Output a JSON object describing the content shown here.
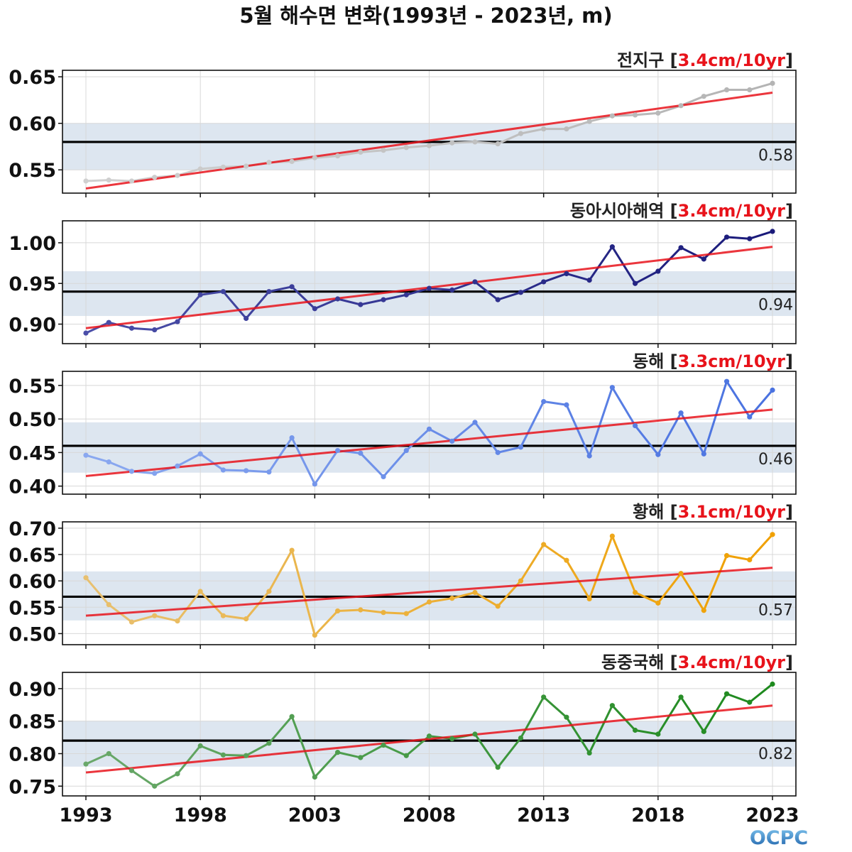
{
  "chart_data": {
    "type": "line",
    "title": "5월 해수면 변화(1993년 - 2023년, m)",
    "x": [
      1993,
      1994,
      1995,
      1996,
      1997,
      1998,
      1999,
      2000,
      2001,
      2002,
      2003,
      2004,
      2005,
      2006,
      2007,
      2008,
      2009,
      2010,
      2011,
      2012,
      2013,
      2014,
      2015,
      2016,
      2017,
      2018,
      2019,
      2020,
      2021,
      2022,
      2023
    ],
    "x_ticks": [
      "1993",
      "1998",
      "2003",
      "2008",
      "2013",
      "2018",
      "2023"
    ],
    "xlim": [
      1993,
      2023
    ],
    "panels": [
      {
        "name": "전지구",
        "trend_label": "3.4cm/10yr",
        "ylim": [
          0.525,
          0.657
        ],
        "y_ticks": [
          "0.55",
          "0.60",
          "0.65"
        ],
        "mean": 0.58,
        "mean_label": "0.58",
        "band": [
          0.55,
          0.6
        ],
        "color_early": "#d0d0d0",
        "color_late": "#b4b4b4",
        "values": [
          0.538,
          0.539,
          0.538,
          0.542,
          0.544,
          0.551,
          0.553,
          0.554,
          0.558,
          0.559,
          0.563,
          0.565,
          0.569,
          0.571,
          0.574,
          0.576,
          0.579,
          0.58,
          0.578,
          0.589,
          0.594,
          0.594,
          0.602,
          0.608,
          0.609,
          0.611,
          0.619,
          0.629,
          0.636,
          0.636,
          0.643
        ],
        "trend": [
          0.53,
          0.633
        ]
      },
      {
        "name": "동아시아해역",
        "trend_label": "3.4cm/10yr",
        "ylim": [
          0.876,
          1.027
        ],
        "y_ticks": [
          "0.90",
          "0.95",
          "1.00"
        ],
        "mean": 0.94,
        "mean_label": "0.94",
        "band": [
          0.91,
          0.965
        ],
        "color_early": "#4a4ea8",
        "color_late": "#1a1a7a",
        "values": [
          0.889,
          0.902,
          0.895,
          0.893,
          0.903,
          0.936,
          0.94,
          0.907,
          0.94,
          0.946,
          0.919,
          0.931,
          0.924,
          0.93,
          0.936,
          0.944,
          0.942,
          0.952,
          0.93,
          0.939,
          0.952,
          0.962,
          0.954,
          0.995,
          0.95,
          0.965,
          0.994,
          0.98,
          1.007,
          1.005,
          1.014
        ],
        "trend": [
          0.895,
          0.995
        ]
      },
      {
        "name": "동해",
        "trend_label": "3.3cm/10yr",
        "ylim": [
          0.388,
          0.571
        ],
        "y_ticks": [
          "0.40",
          "0.45",
          "0.50",
          "0.55"
        ],
        "mean": 0.46,
        "mean_label": "0.46",
        "band": [
          0.42,
          0.495
        ],
        "color_early": "#8aa8f0",
        "color_late": "#4a72e0",
        "values": [
          0.446,
          0.436,
          0.422,
          0.419,
          0.43,
          0.448,
          0.424,
          0.423,
          0.421,
          0.472,
          0.403,
          0.453,
          0.449,
          0.414,
          0.453,
          0.485,
          0.467,
          0.495,
          0.45,
          0.458,
          0.526,
          0.521,
          0.445,
          0.547,
          0.49,
          0.447,
          0.509,
          0.448,
          0.556,
          0.503,
          0.543
        ],
        "trend": [
          0.415,
          0.514
        ]
      },
      {
        "name": "황해",
        "trend_label": "3.1cm/10yr",
        "ylim": [
          0.479,
          0.712
        ],
        "y_ticks": [
          "0.50",
          "0.55",
          "0.60",
          "0.65",
          "0.70"
        ],
        "mean": 0.57,
        "mean_label": "0.57",
        "band": [
          0.525,
          0.618
        ],
        "color_early": "#e8c070",
        "color_late": "#f0a000",
        "values": [
          0.606,
          0.555,
          0.522,
          0.534,
          0.524,
          0.58,
          0.534,
          0.528,
          0.58,
          0.658,
          0.497,
          0.543,
          0.545,
          0.54,
          0.538,
          0.56,
          0.567,
          0.578,
          0.552,
          0.6,
          0.669,
          0.639,
          0.566,
          0.685,
          0.578,
          0.558,
          0.614,
          0.544,
          0.648,
          0.64,
          0.688
        ],
        "trend": [
          0.534,
          0.625
        ]
      },
      {
        "name": "동중국해",
        "trend_label": "3.4cm/10yr",
        "ylim": [
          0.735,
          0.925
        ],
        "y_ticks": [
          "0.75",
          "0.80",
          "0.85",
          "0.90"
        ],
        "mean": 0.82,
        "mean_label": "0.82",
        "band": [
          0.78,
          0.85
        ],
        "color_early": "#6aa86a",
        "color_late": "#1e8a1e",
        "values": [
          0.784,
          0.8,
          0.774,
          0.75,
          0.769,
          0.812,
          0.798,
          0.797,
          0.816,
          0.857,
          0.764,
          0.802,
          0.794,
          0.813,
          0.797,
          0.827,
          0.823,
          0.83,
          0.779,
          0.824,
          0.887,
          0.856,
          0.801,
          0.874,
          0.836,
          0.83,
          0.887,
          0.834,
          0.892,
          0.879,
          0.907
        ],
        "trend": [
          0.771,
          0.874
        ]
      }
    ]
  },
  "colors": {
    "trend": "#e8131b",
    "mean_line": "#000000",
    "band": "#dde6f0",
    "grid": "#d8d8d8",
    "bracket": "#222222"
  },
  "logo": {
    "text": "OCPC"
  }
}
